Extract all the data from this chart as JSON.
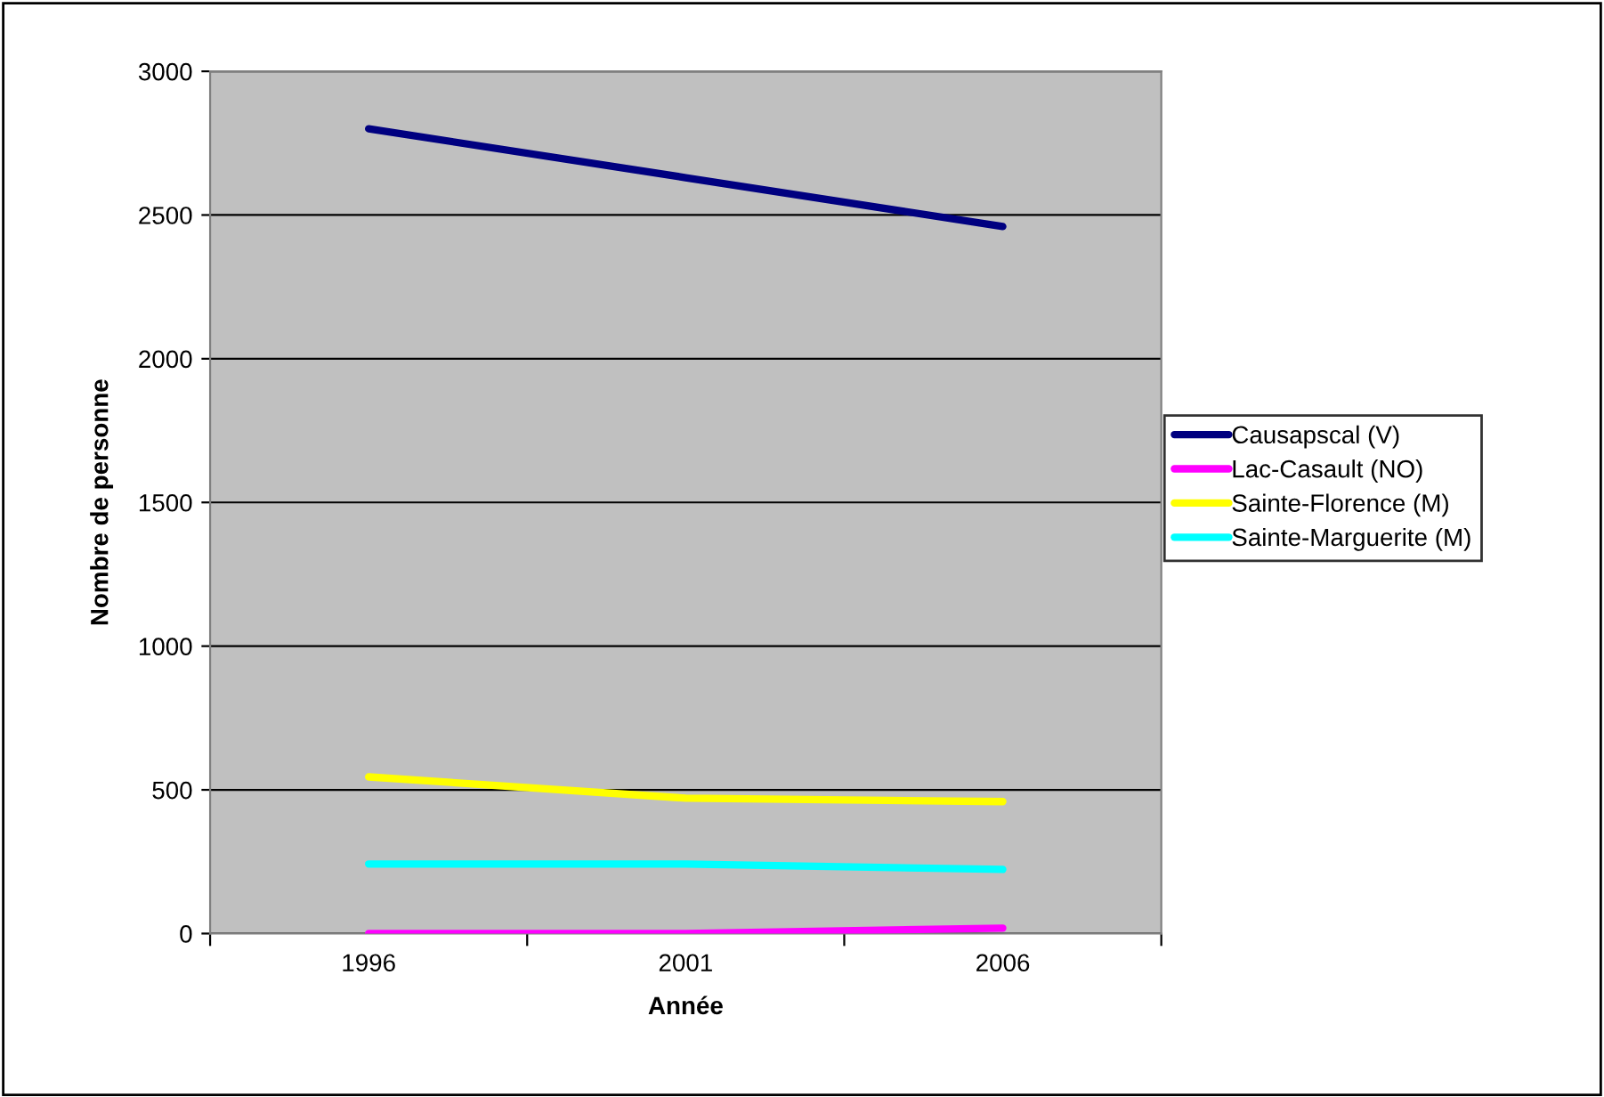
{
  "chart_data": {
    "type": "line",
    "xlabel": "Année",
    "ylabel": "Nombre de personne",
    "categories": [
      "1996",
      "2001",
      "2006"
    ],
    "series": [
      {
        "name": "Causapscal (V)",
        "color": "#000080",
        "values": [
          2800,
          2630,
          2460
        ]
      },
      {
        "name": "Lac-Casault (NO)",
        "color": "#ff00ff",
        "values": [
          0,
          0,
          19
        ]
      },
      {
        "name": "Sainte-Florence (M)",
        "color": "#ffff00",
        "values": [
          545,
          471,
          459
        ]
      },
      {
        "name": "Sainte-Marguerite (M)",
        "color": "#00ffff",
        "values": [
          242,
          242,
          223
        ]
      }
    ],
    "ylim": [
      0,
      3000
    ],
    "yticks": [
      0,
      500,
      1000,
      1500,
      2000,
      2500,
      3000
    ],
    "grid": "y",
    "legend": "right",
    "marker": "none",
    "line_style": "solid"
  }
}
